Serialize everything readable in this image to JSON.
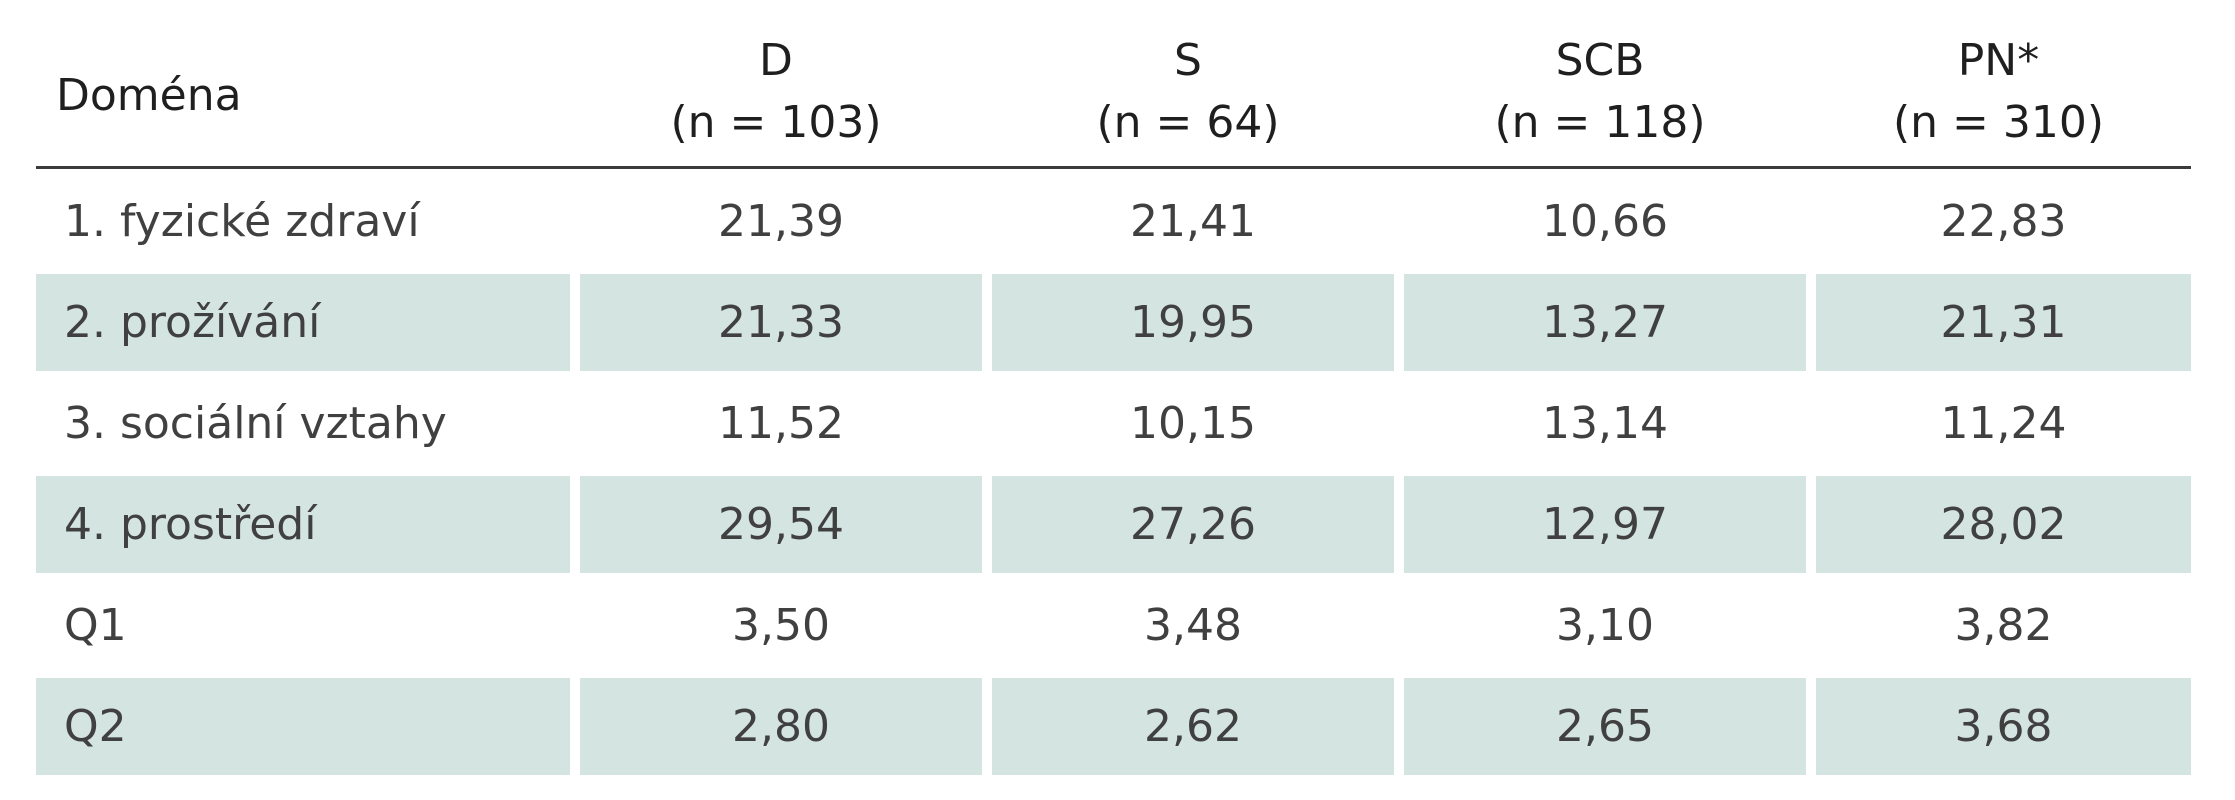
{
  "table": {
    "header": {
      "domain_label": "Doména",
      "columns": [
        {
          "code": "D",
          "n": "(n = 103)"
        },
        {
          "code": "S",
          "n": "(n = 64)"
        },
        {
          "code": "SCB",
          "n": "(n = 118)"
        },
        {
          "code": "PN*",
          "n": "(n = 310)"
        }
      ]
    },
    "rows": [
      {
        "label": "1. fyzické zdraví",
        "values": [
          "21,39",
          "21,41",
          "10,66",
          "22,83"
        ]
      },
      {
        "label": "2. prožívání",
        "values": [
          "21,33",
          "19,95",
          "13,27",
          "21,31"
        ]
      },
      {
        "label": "3. sociální vztahy",
        "values": [
          "11,52",
          "10,15",
          "13,14",
          "11,24"
        ]
      },
      {
        "label": "4. prostředí",
        "values": [
          "29,54",
          "27,26",
          "12,97",
          "28,02"
        ]
      },
      {
        "label": "Q1",
        "values": [
          "3,50",
          "3,48",
          "3,10",
          "3,82"
        ]
      },
      {
        "label": "Q2",
        "values": [
          "2,80",
          "2,62",
          "2,65",
          "3,68"
        ]
      }
    ],
    "shaded_row_color": "#d4e4e0"
  }
}
